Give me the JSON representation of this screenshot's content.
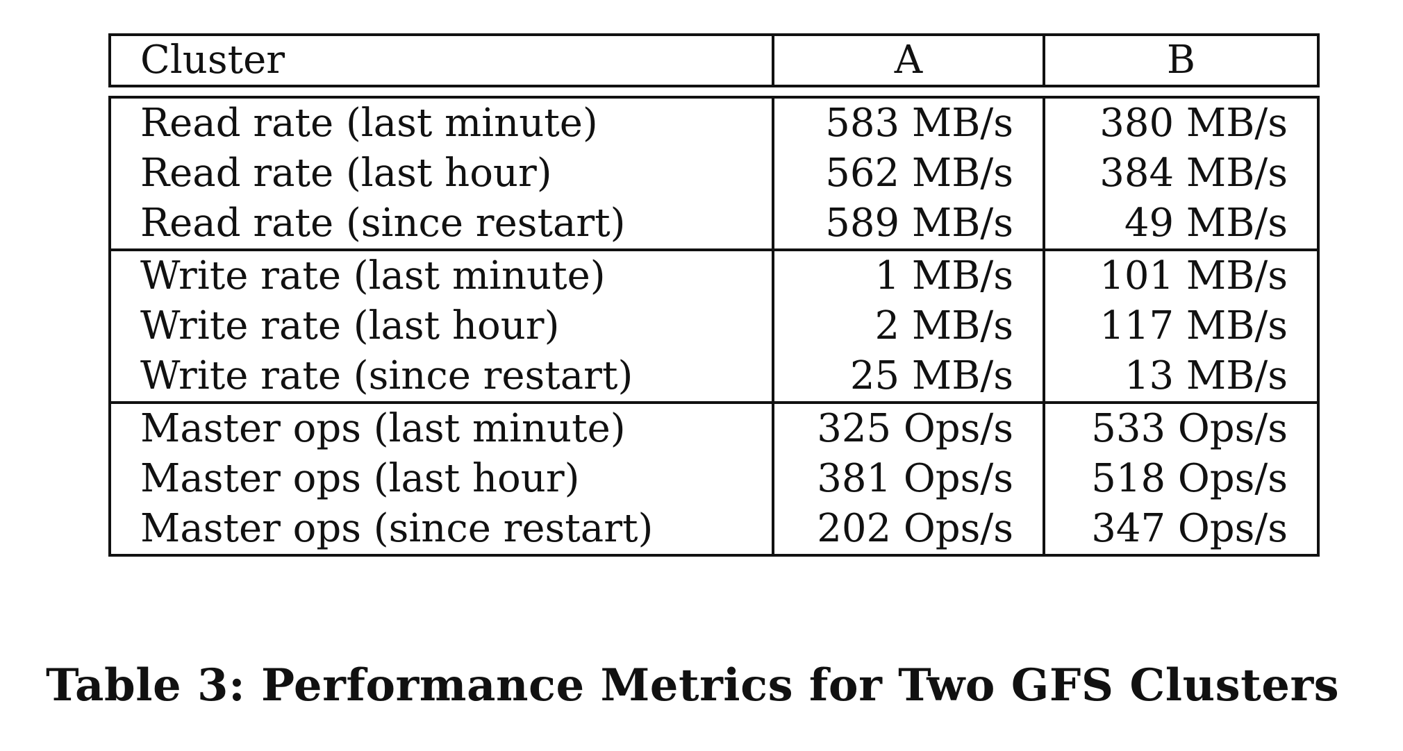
{
  "table": {
    "headers": [
      "Cluster",
      "A",
      "B"
    ],
    "groups": [
      {
        "rows": [
          {
            "label": "Read rate (last minute)",
            "a": "583 MB/s",
            "b": "380 MB/s"
          },
          {
            "label": "Read rate (last hour)",
            "a": "562 MB/s",
            "b": "384 MB/s"
          },
          {
            "label": "Read rate (since restart)",
            "a": "589 MB/s",
            "b": "49 MB/s"
          }
        ]
      },
      {
        "rows": [
          {
            "label": "Write rate (last minute)",
            "a": "1 MB/s",
            "b": "101 MB/s"
          },
          {
            "label": "Write rate (last hour)",
            "a": "2 MB/s",
            "b": "117 MB/s"
          },
          {
            "label": "Write rate (since restart)",
            "a": "25 MB/s",
            "b": "13 MB/s"
          }
        ]
      },
      {
        "rows": [
          {
            "label": "Master ops (last minute)",
            "a": "325 Ops/s",
            "b": "533 Ops/s"
          },
          {
            "label": "Master ops (last hour)",
            "a": "381 Ops/s",
            "b": "518 Ops/s"
          },
          {
            "label": "Master ops (since restart)",
            "a": "202 Ops/s",
            "b": "347 Ops/s"
          }
        ]
      }
    ]
  },
  "caption": "Table 3:  Performance Metrics for Two GFS Clusters"
}
